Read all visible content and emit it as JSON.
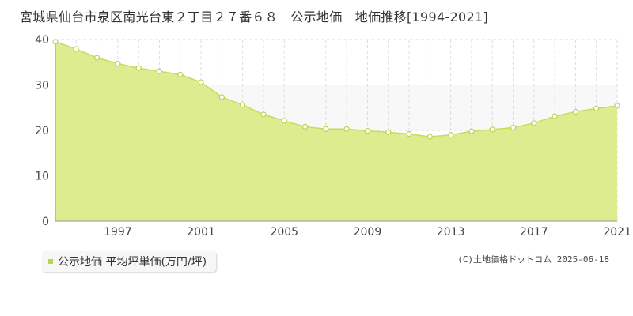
{
  "title": "宮城県仙台市泉区南光台東２丁目２７番６８　公示地価　地価推移[1994-2021]",
  "legend_label": "公示地価 平均坪単価(万円/坪)",
  "copyright": "(C)土地価格ドットコム 2025-06-18",
  "colors": {
    "fill": "#dcec8e",
    "line": "#c1df5c",
    "point_stroke": "#b5d651",
    "upper_band": "#f8f8f8",
    "grid": "#dddddd"
  },
  "chart_data": {
    "type": "area",
    "title": "宮城県仙台市泉区南光台東２丁目２７番６８　公示地価　地価推移[1994-2021]",
    "xlabel": "",
    "ylabel": "",
    "x": [
      1994,
      1995,
      1996,
      1997,
      1998,
      1999,
      2000,
      2001,
      2002,
      2003,
      2004,
      2005,
      2006,
      2007,
      2008,
      2009,
      2010,
      2011,
      2012,
      2013,
      2014,
      2015,
      2016,
      2017,
      2018,
      2019,
      2020,
      2021
    ],
    "series": [
      {
        "name": "公示地価 平均坪単価(万円/坪)",
        "values": [
          39.5,
          37.9,
          36.0,
          34.7,
          33.7,
          33.0,
          32.3,
          30.6,
          27.3,
          25.6,
          23.5,
          22.1,
          20.8,
          20.3,
          20.3,
          19.9,
          19.6,
          19.2,
          18.6,
          19.0,
          19.8,
          20.2,
          20.6,
          21.6,
          23.1,
          24.1,
          24.8,
          25.4
        ]
      }
    ],
    "xlim": [
      1994,
      2021
    ],
    "ylim": [
      0,
      40
    ],
    "yticks": [
      0,
      10,
      20,
      30,
      40
    ],
    "xtick_labels": [
      "1997",
      "2001",
      "2005",
      "2009",
      "2013",
      "2017",
      "2021"
    ],
    "grid": true,
    "legend": "bottom-left"
  }
}
